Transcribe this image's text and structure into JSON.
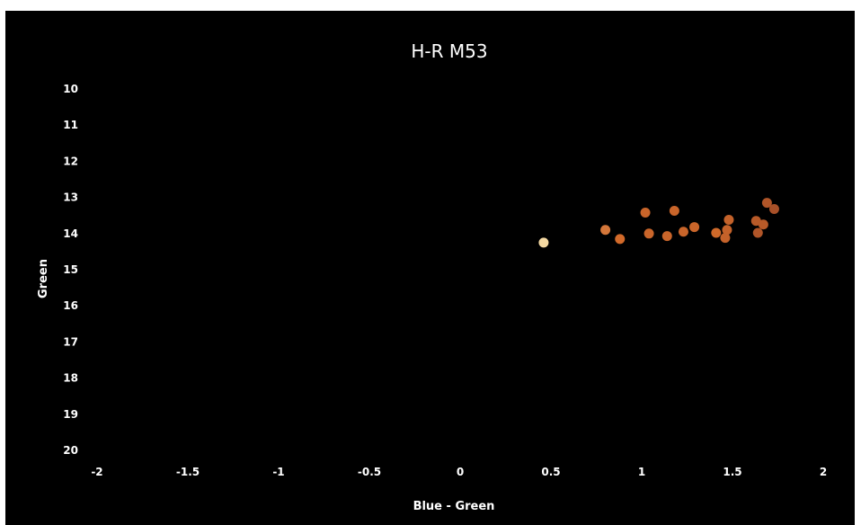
{
  "chart_data": {
    "type": "scatter",
    "title": "H-R M53",
    "xlabel": "Blue - Green",
    "ylabel": "Green",
    "xlim": [
      -2,
      2
    ],
    "ylim": [
      10,
      20
    ],
    "y_inverted": true,
    "grid": false,
    "legend": "none",
    "x_ticks": [
      "-2",
      "-1.5",
      "-1",
      "-0.5",
      "0",
      "0.5",
      "1",
      "1.5",
      "2"
    ],
    "y_ticks": [
      "10",
      "11",
      "12",
      "13",
      "14",
      "15",
      "16",
      "17",
      "18",
      "19",
      "20"
    ],
    "background_color": "#000000",
    "text_color": "#ffffff",
    "points": [
      {
        "x": 0.46,
        "y": 14.25,
        "color": "#f5d9a3"
      },
      {
        "x": 0.8,
        "y": 13.9,
        "color": "#d4773a"
      },
      {
        "x": 0.88,
        "y": 14.15,
        "color": "#d26a2a"
      },
      {
        "x": 1.02,
        "y": 13.42,
        "color": "#c9652a"
      },
      {
        "x": 1.04,
        "y": 14.0,
        "color": "#c9652a"
      },
      {
        "x": 1.14,
        "y": 14.07,
        "color": "#c9652a"
      },
      {
        "x": 1.18,
        "y": 13.37,
        "color": "#c9652a"
      },
      {
        "x": 1.23,
        "y": 13.95,
        "color": "#c9652a"
      },
      {
        "x": 1.29,
        "y": 13.82,
        "color": "#c9652a"
      },
      {
        "x": 1.41,
        "y": 13.98,
        "color": "#d06a2a"
      },
      {
        "x": 1.46,
        "y": 14.12,
        "color": "#c4622a"
      },
      {
        "x": 1.47,
        "y": 13.9,
        "color": "#c4622a"
      },
      {
        "x": 1.48,
        "y": 13.62,
        "color": "#c4622a"
      },
      {
        "x": 1.63,
        "y": 13.65,
        "color": "#b85a28"
      },
      {
        "x": 1.64,
        "y": 13.98,
        "color": "#b05528"
      },
      {
        "x": 1.67,
        "y": 13.75,
        "color": "#b85a28"
      },
      {
        "x": 1.69,
        "y": 13.15,
        "color": "#b05528"
      },
      {
        "x": 1.73,
        "y": 13.32,
        "color": "#a85028"
      }
    ]
  }
}
